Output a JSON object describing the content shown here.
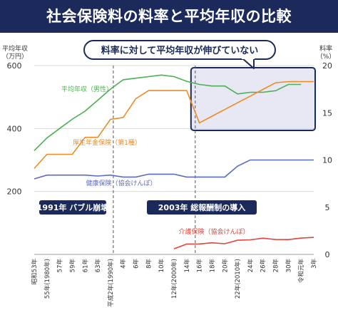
{
  "title": "社会保険料の料率と平均年収の比較",
  "callout": "料率に対して平均年収が伸びていない",
  "annotations": {
    "event1": "1991年 バブル崩壊",
    "event2": "2003年 総報酬制の導入"
  },
  "colors": {
    "title_bg": "#1b2a5b",
    "grid": "#d9d9d9",
    "income": "#4caf50",
    "pension": "#f08a24",
    "health": "#5b6bbf",
    "care": "#e0443a",
    "highlight_fill": "#c9cce6",
    "dark": "#1b2a5b"
  },
  "chart_data": {
    "type": "line",
    "title": "社会保険料の料率と平均年収の比較",
    "left_axis": {
      "label": "平均年収",
      "unit": "（万円）",
      "ticks": [
        "600",
        "400",
        "200"
      ],
      "range": [
        0,
        600
      ]
    },
    "right_axis": {
      "label": "料率",
      "unit": "（%）",
      "ticks": [
        "20",
        "15",
        "10",
        "5",
        "0"
      ],
      "range": [
        0,
        20
      ]
    },
    "x_ticks": [
      "昭和53年",
      "55年(1980年)",
      "57年",
      "59年",
      "61年",
      "63年",
      "平成2年(1990年)",
      "4年",
      "6年",
      "8年",
      "10年",
      "12年(2000年)",
      "14年",
      "16年",
      "18年",
      "20年",
      "22年(2010年)",
      "24年",
      "26年",
      "28年",
      "30年",
      "令和元年",
      "3年"
    ],
    "series": [
      {
        "name": "平均年収（男性）",
        "axis": "left",
        "x": [
          "昭和53年",
          "55年(1980年)",
          "57年",
          "59年",
          "61年",
          "63年",
          "平成2年(1990年)",
          "4年",
          "6年",
          "8年",
          "10年",
          "12年(2000年)",
          "14年",
          "16年",
          "18年",
          "20年",
          "22年(2010年)",
          "24年",
          "26年",
          "28年",
          "30年",
          "令和元年"
        ],
        "y": [
          330,
          370,
          400,
          430,
          455,
          490,
          525,
          555,
          560,
          565,
          570,
          565,
          550,
          540,
          535,
          535,
          510,
          515,
          515,
          520,
          540,
          540
        ]
      },
      {
        "name": "厚生年金保険（第1種）",
        "axis": "right",
        "x": [
          "昭和53年",
          "55年(1980年)",
          "57年",
          "59年",
          "61年",
          "63年",
          "平成2年(1990年)",
          "4年",
          "6年",
          "8年",
          "10年",
          "12年(2000年)",
          "14年",
          "16年",
          "18年",
          "20年",
          "22年(2010年)",
          "24年",
          "26年",
          "28年",
          "30年",
          "令和元年",
          "3年"
        ],
        "y": [
          9.1,
          10.6,
          10.6,
          10.6,
          12.4,
          12.4,
          14.3,
          14.5,
          16.5,
          17.35,
          17.35,
          17.35,
          17.35,
          13.934,
          14.642,
          15.35,
          16.058,
          16.766,
          17.474,
          18.182,
          18.3,
          18.3,
          18.3
        ]
      },
      {
        "name": "健康保険（協会けんぽ）",
        "axis": "right",
        "x": [
          "昭和53年",
          "55年(1980年)",
          "57年",
          "59年",
          "61年",
          "63年",
          "平成2年(1990年)",
          "4年",
          "6年",
          "8年",
          "10年",
          "12年(2000年)",
          "14年",
          "16年",
          "18年",
          "20年",
          "22年(2010年)",
          "24年",
          "26年",
          "28年",
          "30年",
          "令和元年",
          "3年"
        ],
        "y": [
          8.0,
          8.4,
          8.4,
          8.4,
          8.4,
          8.3,
          8.4,
          8.2,
          8.2,
          8.5,
          8.5,
          8.5,
          8.2,
          8.2,
          8.2,
          8.2,
          9.34,
          10.0,
          10.0,
          10.0,
          10.0,
          10.0,
          10.0
        ]
      },
      {
        "name": "介護保険（協会けんぽ）",
        "axis": "right",
        "x": [
          "12年(2000年)",
          "14年",
          "16年",
          "18年",
          "20年",
          "22年(2010年)",
          "24年",
          "26年",
          "28年",
          "30年",
          "令和元年",
          "3年"
        ],
        "y": [
          0.6,
          1.1,
          1.11,
          1.23,
          1.13,
          1.5,
          1.55,
          1.72,
          1.58,
          1.57,
          1.73,
          1.8
        ]
      }
    ],
    "events": [
      {
        "x": "平成2年(1990年)",
        "label": "1991年 バブル崩壊"
      },
      {
        "x": "14年",
        "label": "2003年 総報酬制の導入"
      }
    ],
    "grid": true
  }
}
